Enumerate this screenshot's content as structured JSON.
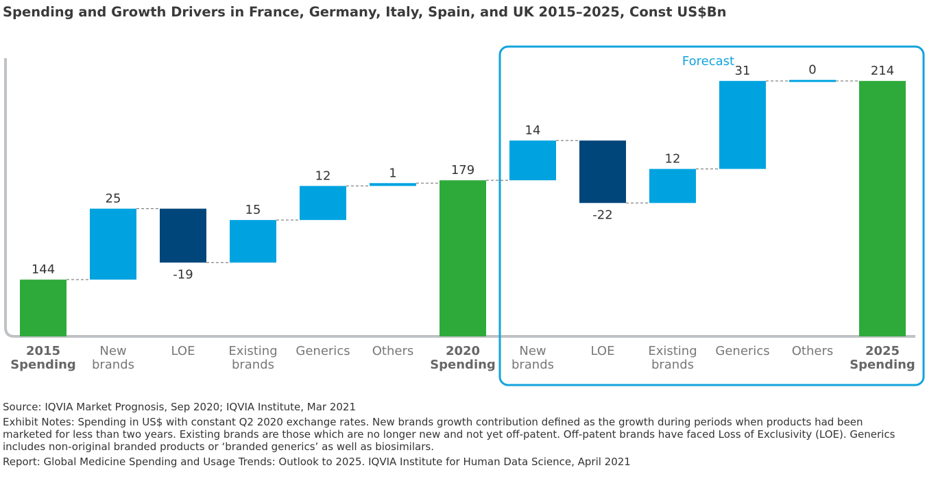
{
  "chart_data": {
    "type": "waterfall",
    "title": "Spending and Growth Drivers in France, Germany, Italy, Spain, and UK 2015–2025, Const US$Bn",
    "forecast_label": "Forecast",
    "categories": [
      "2015 Spending",
      "New brands",
      "LOE",
      "Existing brands",
      "Generics",
      "Others",
      "2020 Spending",
      "New brands",
      "LOE",
      "Existing brands",
      "Generics",
      "Others",
      "2025 Spending"
    ],
    "values": [
      144,
      25,
      -19,
      15,
      12,
      1,
      179,
      14,
      -22,
      12,
      31,
      0,
      214
    ],
    "totals": [
      true,
      false,
      false,
      false,
      false,
      false,
      true,
      false,
      false,
      false,
      false,
      false,
      true
    ],
    "colors": [
      "#2eaa3a",
      "#00a3e0",
      "#00467a",
      "#00a3e0",
      "#00a3e0",
      "#00a3e0",
      "#2eaa3a",
      "#00a3e0",
      "#00467a",
      "#00a3e0",
      "#00a3e0",
      "#00a3e0",
      "#2eaa3a"
    ],
    "ylim": [
      124,
      222
    ],
    "notes": [
      "Source: IQVIA Market Prognosis, Sep 2020; IQVIA Institute, Mar 2021",
      "Exhibit Notes: Spending in US$ with constant Q2 2020 exchange rates. New brands growth contribution defined as the growth during periods when products had been marketed for less than two years. Existing brands are those which are no longer new and not yet off-patent. Off-patent brands have faced Loss of Exclusivity (LOE). Generics includes non-original branded products or ‘branded generics’ as well as biosimilars.",
      "Report: Global Medicine Spending and Usage Trends: Outlook to 2025. IQVIA Institute for Human Data Science, April 2021"
    ]
  }
}
